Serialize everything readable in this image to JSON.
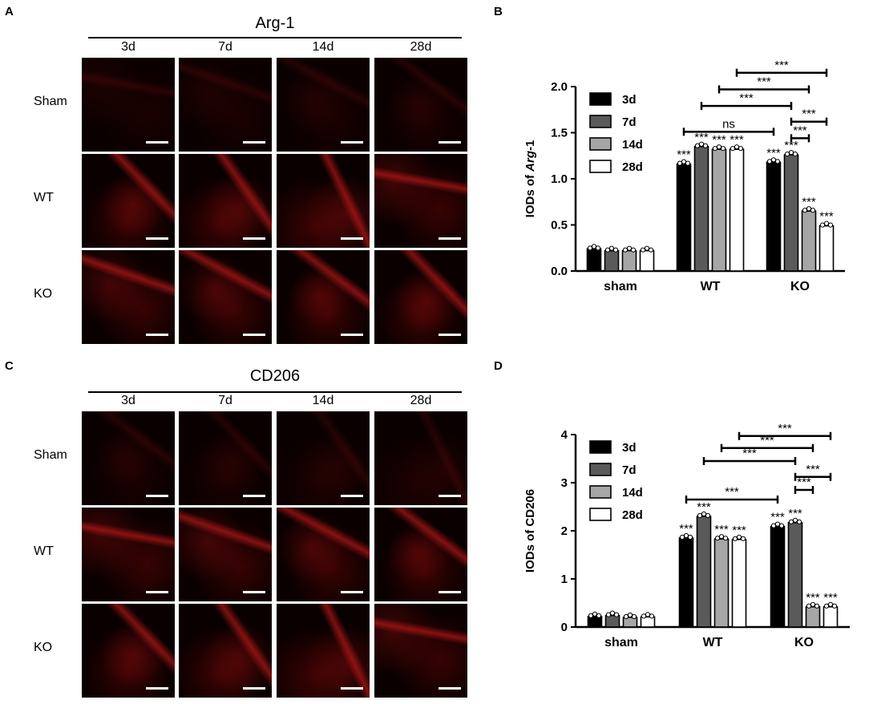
{
  "panels": {
    "a": {
      "letter": "A",
      "title": "Arg-1"
    },
    "b": {
      "letter": "B"
    },
    "c": {
      "letter": "C",
      "title": "CD206"
    },
    "d": {
      "letter": "D"
    }
  },
  "micro": {
    "columns": [
      "3d",
      "7d",
      "14d",
      "28d"
    ],
    "rows": [
      "Sham",
      "WT",
      "KO"
    ],
    "stain_color": "#d01818"
  },
  "chart_data": [
    {
      "type": "bar",
      "categories": [
        "sham",
        "WT",
        "KO"
      ],
      "series": [
        {
          "name": "3d",
          "fill": "#000000",
          "values": [
            0.24,
            1.16,
            1.18
          ]
        },
        {
          "name": "7d",
          "fill": "#5a5a5a",
          "values": [
            0.22,
            1.35,
            1.26
          ]
        },
        {
          "name": "14d",
          "fill": "#a6a6a6",
          "values": [
            0.22,
            1.32,
            0.65
          ]
        },
        {
          "name": "28d",
          "fill": "#ffffff",
          "values": [
            0.22,
            1.32,
            0.49
          ]
        }
      ],
      "ylabel_prefix": "IODs of ",
      "ylabel_italic": "Arg",
      "ylabel_suffix": "-1",
      "ylim": [
        0,
        2.0
      ],
      "yticks": [
        "0.0",
        "0.5",
        "1.0",
        "1.5",
        "2.0"
      ],
      "ytick_values": [
        0,
        0.5,
        1.0,
        1.5,
        2.0
      ],
      "legend": "top-left",
      "bar_stars": "***",
      "bar_stars_groups": [
        1,
        2
      ],
      "brackets": [
        {
          "from": [
            1,
            0
          ],
          "to": [
            2,
            0
          ],
          "label": "ns",
          "y": 1.51
        },
        {
          "from": [
            1,
            1
          ],
          "to": [
            2,
            1
          ],
          "label": "***",
          "y": 1.79
        },
        {
          "from": [
            1,
            2
          ],
          "to": [
            2,
            2
          ],
          "label": "***",
          "y": 1.97
        },
        {
          "from": [
            1,
            3
          ],
          "to": [
            2,
            3
          ],
          "label": "***",
          "y": 2.15
        },
        {
          "from": [
            2,
            1
          ],
          "to": [
            2,
            2
          ],
          "label": "***",
          "y": 1.44
        },
        {
          "from": [
            2,
            1
          ],
          "to": [
            2,
            3
          ],
          "label": "***",
          "y": 1.62
        }
      ]
    },
    {
      "type": "bar",
      "categories": [
        "sham",
        "WT",
        "KO"
      ],
      "series": [
        {
          "name": "3d",
          "fill": "#000000",
          "values": [
            0.22,
            1.85,
            2.09
          ]
        },
        {
          "name": "7d",
          "fill": "#5a5a5a",
          "values": [
            0.24,
            2.3,
            2.17
          ]
        },
        {
          "name": "14d",
          "fill": "#a6a6a6",
          "values": [
            0.2,
            1.83,
            0.42
          ]
        },
        {
          "name": "28d",
          "fill": "#ffffff",
          "values": [
            0.21,
            1.82,
            0.42
          ]
        }
      ],
      "ylabel_prefix": "IODs of CD206",
      "ylabel_italic": "",
      "ylabel_suffix": "",
      "ylim": [
        0,
        4
      ],
      "yticks": [
        "0",
        "1",
        "2",
        "3",
        "4"
      ],
      "ytick_values": [
        0,
        1,
        2,
        3,
        4
      ],
      "legend": "top-left",
      "bar_stars": "***",
      "bar_stars_groups": [
        1,
        2
      ],
      "brackets": [
        {
          "from": [
            1,
            0
          ],
          "to": [
            2,
            0
          ],
          "label": "***",
          "y": 2.65
        },
        {
          "from": [
            1,
            1
          ],
          "to": [
            2,
            1
          ],
          "label": "***",
          "y": 3.45
        },
        {
          "from": [
            1,
            2
          ],
          "to": [
            2,
            2
          ],
          "label": "***",
          "y": 3.72
        },
        {
          "from": [
            1,
            3
          ],
          "to": [
            2,
            3
          ],
          "label": "***",
          "y": 3.97
        },
        {
          "from": [
            2,
            1
          ],
          "to": [
            2,
            2
          ],
          "label": "***",
          "y": 2.85
        },
        {
          "from": [
            2,
            1
          ],
          "to": [
            2,
            3
          ],
          "label": "***",
          "y": 3.12
        }
      ]
    }
  ]
}
